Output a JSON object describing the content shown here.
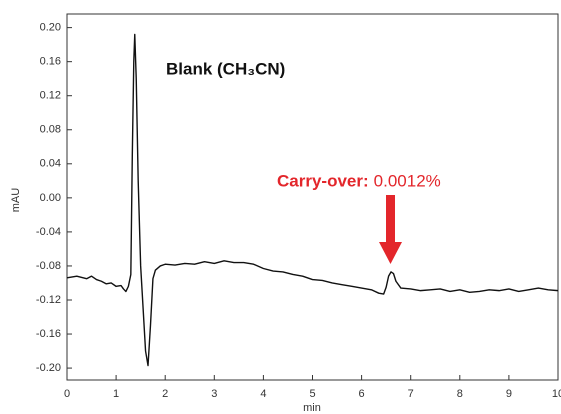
{
  "chart_data": {
    "type": "line",
    "x_label": "min",
    "y_label": "mAU",
    "annotations": [
      "Blank (CH₃CN)",
      "Carry-over:",
      "0.0012%"
    ],
    "xlim": [
      0,
      10
    ],
    "ylim": [
      -0.214,
      0.216
    ],
    "xticks": [
      0,
      1,
      2,
      3,
      4,
      5,
      6,
      7,
      8,
      9,
      10
    ],
    "yticks": [
      {
        "value": 0.2,
        "label": "0.20"
      },
      0.16,
      0.12,
      0.08,
      0.04,
      {
        "value": 0,
        "label": "0.00"
      },
      -0.04,
      -0.08,
      -0.12,
      -0.16,
      {
        "value": -0.2,
        "label": "-0.20"
      }
    ],
    "series": [
      {
        "color": "#111111",
        "x": [
          0,
          0.2,
          0.4,
          0.5,
          0.6,
          0.7,
          0.8,
          0.9,
          1.0,
          1.1,
          1.15,
          1.2,
          1.25,
          1.3,
          1.33,
          1.36,
          1.38,
          1.41,
          1.45,
          1.5,
          1.55,
          1.6,
          1.65,
          1.7,
          1.75,
          1.8,
          1.9,
          2.0,
          2.2,
          2.4,
          2.6,
          2.8,
          3.0,
          3.2,
          3.4,
          3.6,
          3.8,
          4.0,
          4.2,
          4.4,
          4.6,
          4.8,
          5.0,
          5.2,
          5.4,
          5.6,
          5.8,
          6.0,
          6.2,
          6.35,
          6.45,
          6.5,
          6.55,
          6.6,
          6.65,
          6.7,
          6.8,
          7.0,
          7.2,
          7.4,
          7.6,
          7.8,
          8.0,
          8.2,
          8.4,
          8.6,
          8.8,
          9.0,
          9.2,
          9.4,
          9.6,
          9.8,
          10.0
        ],
        "values": [
          -0.094,
          -0.092,
          -0.095,
          -0.092,
          -0.096,
          -0.098,
          -0.101,
          -0.1,
          -0.104,
          -0.103,
          -0.107,
          -0.11,
          -0.104,
          -0.09,
          0.05,
          0.16,
          0.192,
          0.14,
          0.02,
          -0.08,
          -0.13,
          -0.18,
          -0.197,
          -0.15,
          -0.095,
          -0.085,
          -0.08,
          -0.078,
          -0.079,
          -0.077,
          -0.078,
          -0.075,
          -0.077,
          -0.074,
          -0.076,
          -0.076,
          -0.078,
          -0.083,
          -0.086,
          -0.087,
          -0.09,
          -0.092,
          -0.096,
          -0.097,
          -0.1,
          -0.102,
          -0.104,
          -0.106,
          -0.108,
          -0.112,
          -0.113,
          -0.105,
          -0.092,
          -0.087,
          -0.089,
          -0.098,
          -0.106,
          -0.107,
          -0.109,
          -0.108,
          -0.107,
          -0.11,
          -0.108,
          -0.111,
          -0.11,
          -0.108,
          -0.109,
          -0.107,
          -0.11,
          -0.108,
          -0.106,
          -0.108,
          -0.109
        ]
      }
    ]
  }
}
